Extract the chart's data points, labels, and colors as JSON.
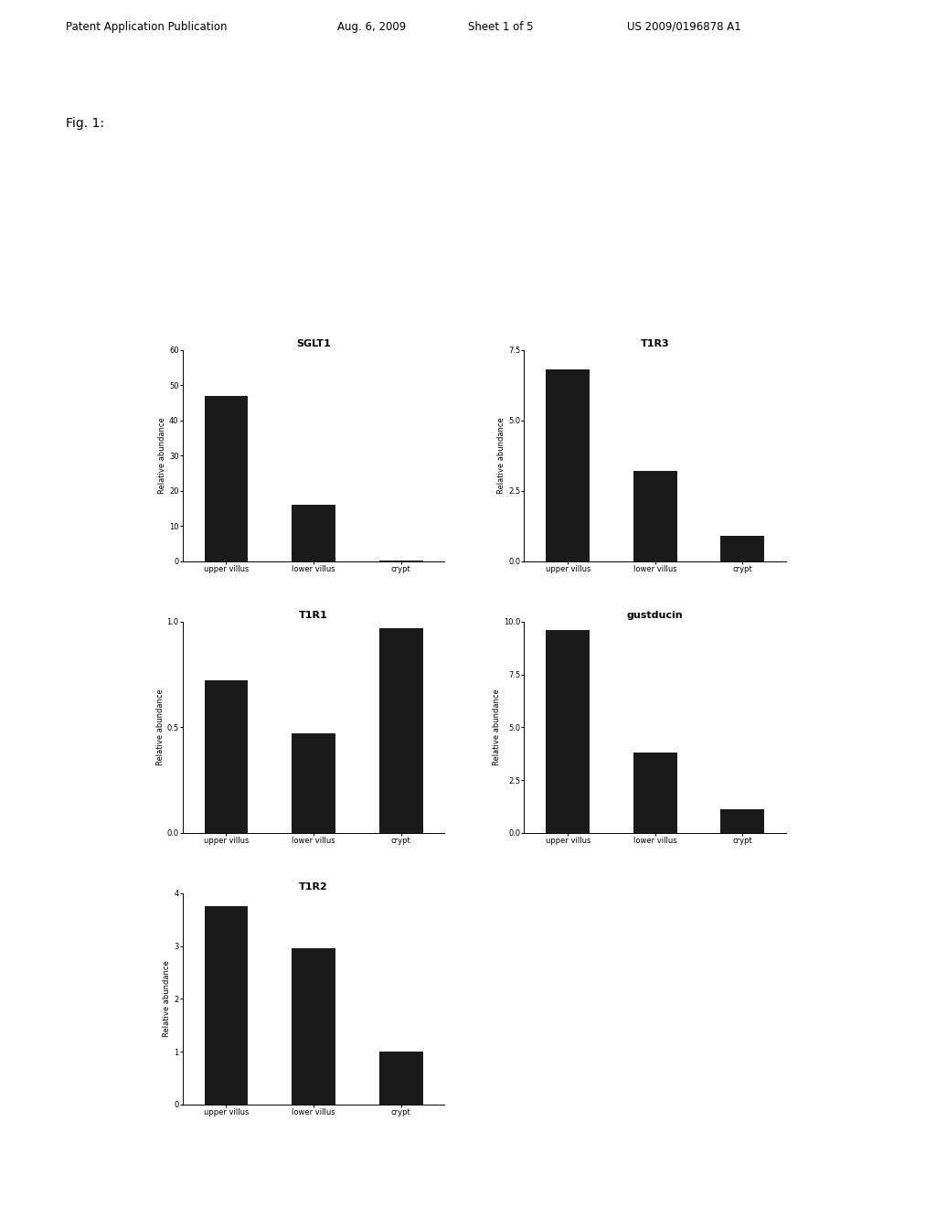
{
  "charts": [
    {
      "title": "SGLT1",
      "categories": [
        "upper villus",
        "lower villus",
        "crypt"
      ],
      "values": [
        47,
        16,
        0.3
      ],
      "ylim": [
        0,
        60
      ],
      "yticks": [
        0,
        10,
        20,
        30,
        40,
        50,
        60
      ],
      "ytick_labels": [
        "0",
        "10",
        "20",
        "30",
        "40",
        "50",
        "60"
      ],
      "ylabel": "Relative abundance"
    },
    {
      "title": "T1R3",
      "categories": [
        "upper villus",
        "lower villus",
        "crypt"
      ],
      "values": [
        6.8,
        3.2,
        0.9
      ],
      "ylim": [
        0.0,
        7.5
      ],
      "yticks": [
        0.0,
        2.5,
        5.0,
        7.5
      ],
      "ytick_labels": [
        "0.0",
        "2.5",
        "5.0",
        "7.5"
      ],
      "ylabel": "Relative abundance"
    },
    {
      "title": "T1R1",
      "categories": [
        "upper villus",
        "lower villus",
        "crypt"
      ],
      "values": [
        0.72,
        0.47,
        0.97
      ],
      "ylim": [
        0.0,
        1.0
      ],
      "yticks": [
        0.0,
        0.5,
        1.0
      ],
      "ytick_labels": [
        "0.0",
        "0.5",
        "1.0"
      ],
      "ylabel": "Relative abundance"
    },
    {
      "title": "gustducin",
      "categories": [
        "upper villus",
        "lower villus",
        "crypt"
      ],
      "values": [
        9.6,
        3.8,
        1.1
      ],
      "ylim": [
        0.0,
        10.0
      ],
      "yticks": [
        0.0,
        2.5,
        5.0,
        7.5,
        10.0
      ],
      "ytick_labels": [
        "0.0",
        "2.5",
        "5.0",
        "7.5",
        "10.0"
      ],
      "ylabel": "Relative abundance"
    },
    {
      "title": "T1R2",
      "categories": [
        "upper villus",
        "lower villus",
        "crypt"
      ],
      "values": [
        3.75,
        2.95,
        1.0
      ],
      "ylim": [
        0,
        4
      ],
      "yticks": [
        0,
        1,
        2,
        3,
        4
      ],
      "ytick_labels": [
        "0",
        "1",
        "2",
        "3",
        "4"
      ],
      "ylabel": "Relative abundance"
    }
  ],
  "bar_color": "#1a1a1a",
  "bar_width": 0.5,
  "background_color": "#ffffff",
  "header_text": "Patent Application Publication",
  "header_date": "Aug. 6, 2009",
  "header_sheet": "Sheet 1 of 5",
  "header_patent": "US 2009/0196878 A1",
  "fig_label": "Fig. 1:",
  "title_fontsize": 8,
  "label_fontsize": 6,
  "tick_fontsize": 6,
  "header_fontsize": 8.5
}
